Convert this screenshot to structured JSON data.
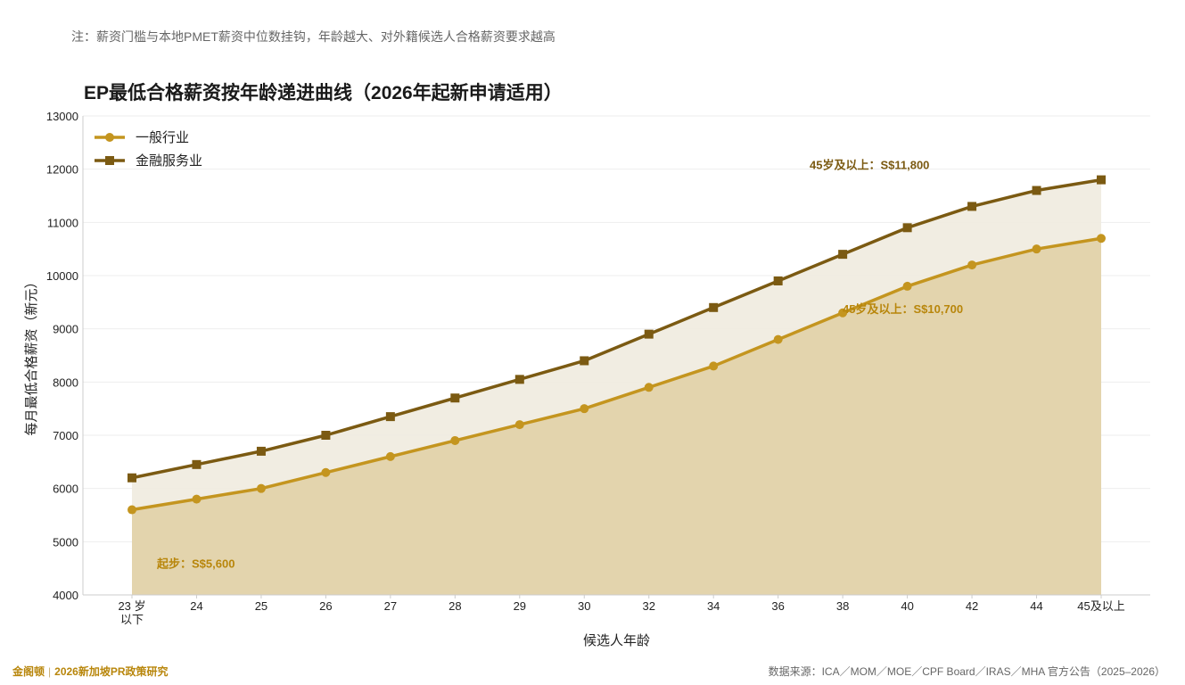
{
  "note": "注：薪资门槛与本地PMET薪资中位数挂钩，年龄越大、对外籍候选人合格薪资要求越高",
  "footer": {
    "brand": "金阁顿",
    "separator": "|",
    "subtitle": "2026新加坡PR政策研究",
    "source": "数据来源：ICA／MOM／MOE／CPF Board／IRAS／MHA 官方公告（2025–2026）"
  },
  "colors": {
    "general": "#c4951f",
    "finance": "#7b5a12",
    "general_fill": "#e3d4ad",
    "finance_fill": "#f0ebdf",
    "grid": "#eeeeee"
  },
  "chart_data": {
    "type": "line",
    "title": "EP最低合格薪资按年龄递进曲线（2026年起新申请适用）",
    "xlabel": "候选人年龄",
    "ylabel": "每月最低合格薪资（新元）",
    "ylim": [
      4000,
      13000
    ],
    "yticks": [
      4000,
      5000,
      6000,
      7000,
      8000,
      9000,
      10000,
      11000,
      12000,
      13000
    ],
    "categories": [
      "23 岁\n以下",
      "24",
      "25",
      "26",
      "27",
      "28",
      "29",
      "30",
      "32",
      "34",
      "36",
      "38",
      "40",
      "42",
      "44",
      "45及以上"
    ],
    "grid": true,
    "legend_position": "top-left",
    "series": [
      {
        "name": "一般行业",
        "marker": "circle",
        "values": [
          5600,
          5800,
          6000,
          6300,
          6600,
          6900,
          7200,
          7500,
          7900,
          8300,
          8800,
          9300,
          9800,
          10200,
          10500,
          10700
        ]
      },
      {
        "name": "金融服务业",
        "marker": "square",
        "values": [
          6200,
          6450,
          6700,
          7000,
          7350,
          7700,
          8050,
          8400,
          8900,
          9400,
          9900,
          10400,
          10900,
          11300,
          11600,
          11800
        ]
      }
    ],
    "annotations": [
      {
        "text": "起步：S$5,600",
        "series": 0,
        "index": 0
      },
      {
        "text": "45岁及以上：S$10,700",
        "series": 0,
        "index": 15
      },
      {
        "text": "45岁及以上：S$11,800",
        "series": 1,
        "index": 15
      }
    ]
  }
}
